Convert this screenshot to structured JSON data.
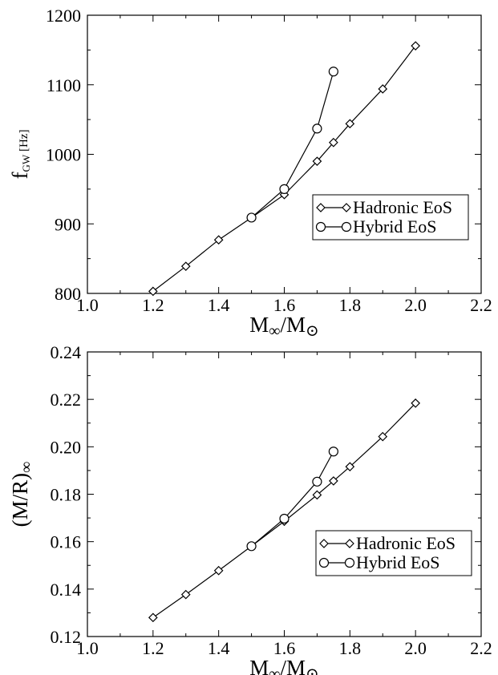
{
  "chart_data": [
    {
      "type": "line",
      "xlabel_main": "M",
      "xlabel_sub1": "∞",
      "xlabel_mid": "/M",
      "xlabel_sub2": "⊙",
      "ylabel_main": "f",
      "ylabel_sub": "GW",
      "ylabel_unit": " [Hz]",
      "xlim": [
        1.0,
        2.2
      ],
      "ylim": [
        800,
        1200
      ],
      "x_ticks": [
        "1.0",
        "1.2",
        "1.4",
        "1.6",
        "1.8",
        "2.0",
        "2.2"
      ],
      "y_ticks": [
        "800",
        "900",
        "1000",
        "1100",
        "1200"
      ],
      "legend_position": "center-right",
      "series": [
        {
          "name": "Hadronic EoS",
          "marker": "diamond",
          "x": [
            1.2,
            1.3,
            1.4,
            1.5,
            1.6,
            1.7,
            1.75,
            1.8,
            1.9,
            2.0
          ],
          "y": [
            803,
            839,
            877,
            909,
            942,
            990,
            1017,
            1044,
            1094,
            1156
          ]
        },
        {
          "name": "Hybrid EoS",
          "marker": "circle",
          "x": [
            1.5,
            1.6,
            1.7,
            1.75
          ],
          "y": [
            909,
            950,
            1037,
            1119
          ]
        }
      ]
    },
    {
      "type": "line",
      "xlabel_main": "M",
      "xlabel_sub1": "∞",
      "xlabel_mid": "/M",
      "xlabel_sub2": "⊙",
      "ylabel_main": "(M/R)",
      "ylabel_sub": "∞",
      "xlim": [
        1.0,
        2.2
      ],
      "ylim": [
        0.12,
        0.24
      ],
      "x_ticks": [
        "1.0",
        "1.2",
        "1.4",
        "1.6",
        "1.8",
        "2.0",
        "2.2"
      ],
      "y_ticks": [
        "0.12",
        "0.14",
        "0.16",
        "0.18",
        "0.20",
        "0.22",
        "0.24"
      ],
      "legend_position": "bottom-right",
      "series": [
        {
          "name": "Hadronic EoS",
          "marker": "diamond",
          "x": [
            1.2,
            1.3,
            1.4,
            1.5,
            1.6,
            1.7,
            1.75,
            1.8,
            1.9,
            2.0
          ],
          "y": [
            0.128,
            0.1377,
            0.1478,
            0.1581,
            0.1686,
            0.1797,
            0.1856,
            0.1916,
            0.2043,
            0.2184
          ]
        },
        {
          "name": "Hybrid EoS",
          "marker": "circle",
          "x": [
            1.5,
            1.6,
            1.7,
            1.75
          ],
          "y": [
            0.1581,
            0.1697,
            0.1853,
            0.198
          ]
        }
      ]
    }
  ]
}
